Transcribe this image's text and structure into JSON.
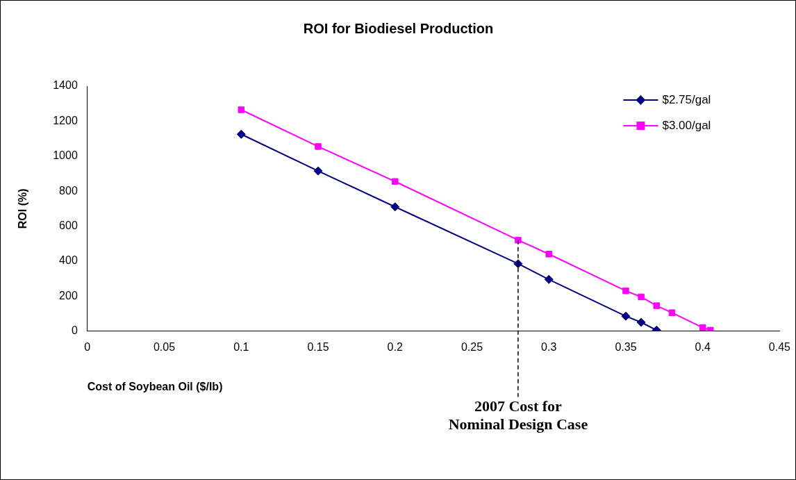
{
  "chart_data": {
    "type": "line",
    "title": "ROI for Biodiesel Production",
    "xlabel": "Cost of Soybean Oil ($/lb)",
    "ylabel": "ROI (%)",
    "xlim": [
      0,
      0.45
    ],
    "xticks": [
      0,
      0.05,
      0.1,
      0.15,
      0.2,
      0.25,
      0.3,
      0.35,
      0.4,
      0.45
    ],
    "ylim": [
      0,
      1400
    ],
    "yticks": [
      0,
      200,
      400,
      600,
      800,
      1000,
      1200,
      1400
    ],
    "grid": false,
    "legend": "top right",
    "series": [
      {
        "name": "$2.75/gal",
        "color": "#000080",
        "marker": "diamond",
        "x": [
          0.1,
          0.15,
          0.2,
          0.28,
          0.3,
          0.35,
          0.36,
          0.37
        ],
        "values": [
          1125,
          915,
          710,
          385,
          295,
          85,
          50,
          5
        ]
      },
      {
        "name": "$3.00/gal",
        "color": "#ff00ff",
        "marker": "square",
        "x": [
          0.1,
          0.15,
          0.2,
          0.28,
          0.3,
          0.35,
          0.36,
          0.37,
          0.38,
          0.4,
          0.405
        ],
        "values": [
          1265,
          1055,
          855,
          520,
          440,
          230,
          195,
          145,
          105,
          20,
          5
        ]
      }
    ],
    "ref_lines": [
      {
        "axis": "x",
        "value": 0.28,
        "label": "2007 Cost for\nNominal Design Case",
        "line_style": "dashed"
      }
    ]
  }
}
